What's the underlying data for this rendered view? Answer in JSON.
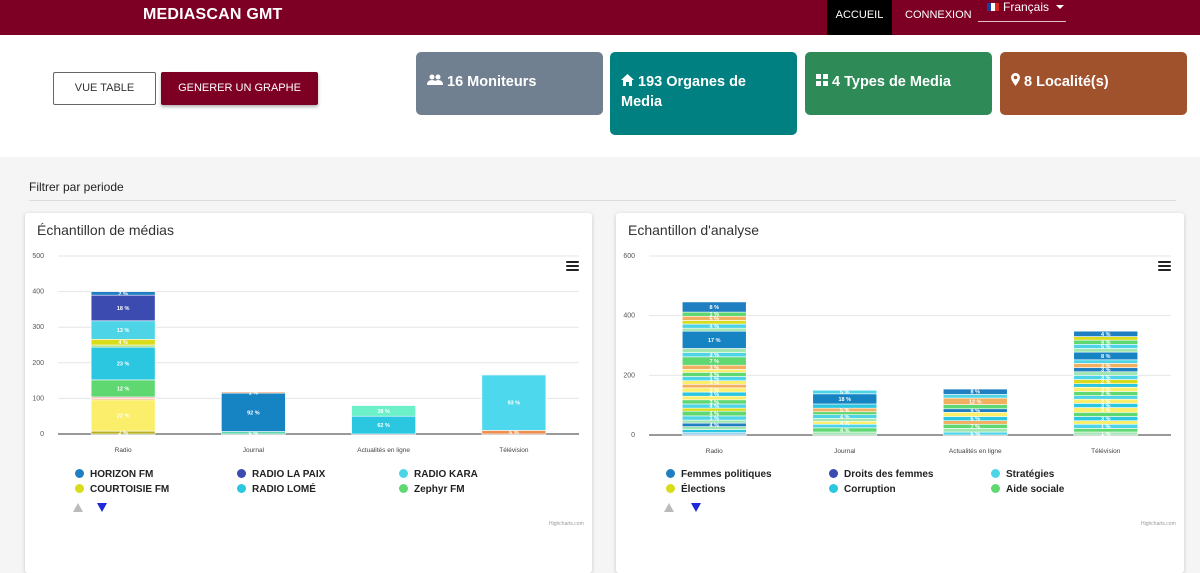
{
  "navbar": {
    "brand": "MEDIASCAN GMT",
    "accueil": "ACCUEIL",
    "connexion": "CONNEXION",
    "language": "Français",
    "color": "#7d0024"
  },
  "buttons": {
    "vue_table": "VUE TABLE",
    "generer_graphe": "GENERER UN GRAPHE"
  },
  "stats": [
    {
      "icon": "users-icon",
      "label": "16 Moniteurs",
      "color": "#708090"
    },
    {
      "icon": "home-icon",
      "label": "193 Organes de Media",
      "color": "#008080"
    },
    {
      "icon": "grid-icon",
      "label": "4 Types de Media",
      "color": "#2e8b57"
    },
    {
      "icon": "map-marker-icon",
      "label": "8 Localité(s)",
      "color": "#a0522d"
    }
  ],
  "filter": {
    "label": "Filtrer par periode"
  },
  "credits": "Highcharts.com",
  "chart_data": [
    {
      "type": "bar",
      "stacked": true,
      "title": "Échantillon de médias",
      "categories": [
        "Radio",
        "Journal",
        "Actualités en ligne",
        "Télévision"
      ],
      "ylim": [
        0,
        500
      ],
      "yticks": [
        0,
        100,
        200,
        300,
        400,
        500
      ],
      "grid": true,
      "legend_position": "bottom",
      "legend": [
        {
          "name": "HORIZON FM",
          "color": "#1f7fc1"
        },
        {
          "name": "RADIO LA PAIX",
          "color": "#3c4bb0"
        },
        {
          "name": "RADIO KARA",
          "color": "#4dd4e6"
        },
        {
          "name": "COURTOISIE FM",
          "color": "#d8dc1a"
        },
        {
          "name": "RADIO LOMÉ",
          "color": "#2bc6e0"
        },
        {
          "name": "Zephyr FM",
          "color": "#5fd872"
        }
      ],
      "stacks": [
        {
          "category": "Radio",
          "segments": [
            {
              "value": 8,
              "color": "#b8b020",
              "label": "2 %"
            },
            {
              "value": 88,
              "color": "#fbee6a",
              "label": "22 %"
            },
            {
              "value": 4,
              "color": "#f0b060",
              "label": ""
            },
            {
              "value": 4,
              "color": "#f5a0a8",
              "label": ""
            },
            {
              "value": 48,
              "color": "#5fd872",
              "label": "12 %"
            },
            {
              "value": 92,
              "color": "#2bc6e0",
              "label": "23 %"
            },
            {
              "value": 6,
              "color": "#b0e070",
              "label": ""
            },
            {
              "value": 16,
              "color": "#d8dc1a",
              "label": "4 %"
            },
            {
              "value": 52,
              "color": "#4dd4e6",
              "label": "13 %"
            },
            {
              "value": 72,
              "color": "#3c4bb0",
              "label": "18 %"
            },
            {
              "value": 10,
              "color": "#1f7fc1",
              "label": "2 %"
            }
          ]
        },
        {
          "category": "Journal",
          "segments": [
            {
              "value": 7,
              "color": "#5fd8b0",
              "label": "6 %"
            },
            {
              "value": 108,
              "color": "#1683c3",
              "label": "92 %"
            },
            {
              "value": 3,
              "color": "#e88040",
              "label": "1 %"
            }
          ]
        },
        {
          "category": "Actualités en ligne",
          "segments": [
            {
              "value": 50,
              "color": "#2bc6e0",
              "label": "62 %"
            },
            {
              "value": 30,
              "color": "#6cf0c8",
              "label": "38 %"
            }
          ]
        },
        {
          "category": "Télévision",
          "segments": [
            {
              "value": 10,
              "color": "#f09050",
              "label": "6 %"
            },
            {
              "value": 156,
              "color": "#4dd8ee",
              "label": "93 %"
            },
            {
              "value": 2,
              "color": "#2bc6e0",
              "label": ""
            }
          ]
        }
      ]
    },
    {
      "type": "bar",
      "stacked": true,
      "title": "Echantillon d'analyse",
      "categories": [
        "Radio",
        "Journal",
        "Actualités en ligne",
        "Télévision"
      ],
      "ylim": [
        0,
        600
      ],
      "yticks": [
        0,
        200,
        400,
        600
      ],
      "grid": true,
      "legend_position": "bottom",
      "legend": [
        {
          "name": "Femmes politiques",
          "color": "#1f7fc1"
        },
        {
          "name": "Droits des femmes",
          "color": "#3c4bb0"
        },
        {
          "name": "Stratégies",
          "color": "#4dd4e6"
        },
        {
          "name": "Élections",
          "color": "#d8dc1a"
        },
        {
          "name": "Corruption",
          "color": "#2bc6e0"
        },
        {
          "name": "Aide sociale",
          "color": "#5fd872"
        }
      ],
      "stacks": [
        {
          "category": "Radio",
          "segments": [
            {
              "value": 8,
              "color": "#9ad0f0",
              "label": ""
            },
            {
              "value": 10,
              "color": "#2bc6e0",
              "label": ""
            },
            {
              "value": 10,
              "color": "#9fe6b0",
              "label": ""
            },
            {
              "value": 12,
              "color": "#1f7fc1",
              "label": "4 %"
            },
            {
              "value": 10,
              "color": "#9fe6b0",
              "label": ""
            },
            {
              "value": 14,
              "color": "#4dd4e6",
              "label": "1 %"
            },
            {
              "value": 16,
              "color": "#5fd872",
              "label": "4 %"
            },
            {
              "value": 10,
              "color": "#d8dc1a",
              "label": ""
            },
            {
              "value": 14,
              "color": "#4dd4e6",
              "label": "4 %"
            },
            {
              "value": 14,
              "color": "#5fd872",
              "label": "3 %"
            },
            {
              "value": 12,
              "color": "#fbee6a",
              "label": ""
            },
            {
              "value": 14,
              "color": "#2bc6e0",
              "label": "3 %"
            },
            {
              "value": 14,
              "color": "#fbee6a",
              "label": "2 %"
            },
            {
              "value": 12,
              "color": "#f0b060",
              "label": ""
            },
            {
              "value": 12,
              "color": "#fbee6a",
              "label": "3 %"
            },
            {
              "value": 14,
              "color": "#4dd4e6",
              "label": "1 %"
            },
            {
              "value": 14,
              "color": "#5fd872",
              "label": "4 %"
            },
            {
              "value": 10,
              "color": "#fbee6a",
              "label": ""
            },
            {
              "value": 14,
              "color": "#f0b060",
              "label": "3 %"
            },
            {
              "value": 28,
              "color": "#5fd872",
              "label": "7 %"
            },
            {
              "value": 14,
              "color": "#4dd4e6",
              "label": "3 %"
            },
            {
              "value": 14,
              "color": "#9fe6b0",
              "label": ""
            },
            {
              "value": 58,
              "color": "#1683c3",
              "label": "17 %"
            },
            {
              "value": 10,
              "color": "#9fe6b0",
              "label": ""
            },
            {
              "value": 14,
              "color": "#4dd4e6",
              "label": "4 %"
            },
            {
              "value": 12,
              "color": "#d8dc1a",
              "label": ""
            },
            {
              "value": 14,
              "color": "#f0b060",
              "label": "5 %"
            },
            {
              "value": 14,
              "color": "#5fd872",
              "label": "1 %"
            },
            {
              "value": 34,
              "color": "#1f7fc1",
              "label": "8 %"
            }
          ]
        },
        {
          "category": "Journal",
          "segments": [
            {
              "value": 10,
              "color": "#9fe6b0",
              "label": ""
            },
            {
              "value": 14,
              "color": "#5fd872",
              "label": "4 %"
            },
            {
              "value": 12,
              "color": "#4dd4e6",
              "label": ""
            },
            {
              "value": 10,
              "color": "#fbee6a",
              "label": "4 %"
            },
            {
              "value": 10,
              "color": "#9fe6b0",
              "label": ""
            },
            {
              "value": 12,
              "color": "#4dd4e6",
              "label": "4 %"
            },
            {
              "value": 10,
              "color": "#5fd872",
              "label": ""
            },
            {
              "value": 12,
              "color": "#f0b060",
              "label": "5 %"
            },
            {
              "value": 14,
              "color": "#2bc6e0",
              "label": ""
            },
            {
              "value": 34,
              "color": "#1683c3",
              "label": "18 %"
            },
            {
              "value": 12,
              "color": "#4dd4e6",
              "label": "5 %"
            }
          ]
        },
        {
          "category": "Actualités en ligne",
          "segments": [
            {
              "value": 10,
              "color": "#4dd4e6",
              "label": "6 %"
            },
            {
              "value": 12,
              "color": "#9fe6b0",
              "label": ""
            },
            {
              "value": 14,
              "color": "#5fd872",
              "label": "7 %"
            },
            {
              "value": 12,
              "color": "#f0b060",
              "label": ""
            },
            {
              "value": 14,
              "color": "#2bc6e0",
              "label": "6 %"
            },
            {
              "value": 14,
              "color": "#fbee6a",
              "label": ""
            },
            {
              "value": 12,
              "color": "#1f7fc1",
              "label": "9 %"
            },
            {
              "value": 14,
              "color": "#5fd872",
              "label": ""
            },
            {
              "value": 22,
              "color": "#f0b060",
              "label": "12 %"
            },
            {
              "value": 12,
              "color": "#4dd4e6",
              "label": ""
            },
            {
              "value": 18,
              "color": "#1f7fc1",
              "label": "8 %"
            }
          ]
        },
        {
          "category": "Télévision",
          "segments": [
            {
              "value": 10,
              "color": "#9fe6b0",
              "label": "1 %"
            },
            {
              "value": 12,
              "color": "#5fd872",
              "label": ""
            },
            {
              "value": 14,
              "color": "#4dd4e6",
              "label": "1 %"
            },
            {
              "value": 12,
              "color": "#fbee6a",
              "label": ""
            },
            {
              "value": 14,
              "color": "#2bc6e0",
              "label": "3 %"
            },
            {
              "value": 14,
              "color": "#5fd872",
              "label": ""
            },
            {
              "value": 16,
              "color": "#fbee6a",
              "label": "3 %"
            },
            {
              "value": 14,
              "color": "#2bc6e0",
              "label": "3 %"
            },
            {
              "value": 14,
              "color": "#fbee6a",
              "label": "2 %"
            },
            {
              "value": 12,
              "color": "#4dd4e6",
              "label": ""
            },
            {
              "value": 14,
              "color": "#5fd872",
              "label": "2 %"
            },
            {
              "value": 14,
              "color": "#fbee6a",
              "label": "4 %"
            },
            {
              "value": 12,
              "color": "#2bc6e0",
              "label": ""
            },
            {
              "value": 14,
              "color": "#d8dc1a",
              "label": "2 %"
            },
            {
              "value": 14,
              "color": "#4dd4e6",
              "label": "3 %"
            },
            {
              "value": 12,
              "color": "#9fe6b0",
              "label": ""
            },
            {
              "value": 14,
              "color": "#1f7fc1",
              "label": "3 %"
            },
            {
              "value": 14,
              "color": "#f0b060",
              "label": "3 %"
            },
            {
              "value": 12,
              "color": "#4dd4e6",
              "label": ""
            },
            {
              "value": 26,
              "color": "#1683c3",
              "label": "8 %"
            },
            {
              "value": 12,
              "color": "#9fe6b0",
              "label": ""
            },
            {
              "value": 14,
              "color": "#4dd4e6",
              "label": "5 %"
            },
            {
              "value": 14,
              "color": "#5fd872",
              "label": "4 %"
            },
            {
              "value": 12,
              "color": "#d8dc1a",
              "label": ""
            },
            {
              "value": 18,
              "color": "#1f7fc1",
              "label": "4 %"
            }
          ]
        }
      ]
    }
  ]
}
